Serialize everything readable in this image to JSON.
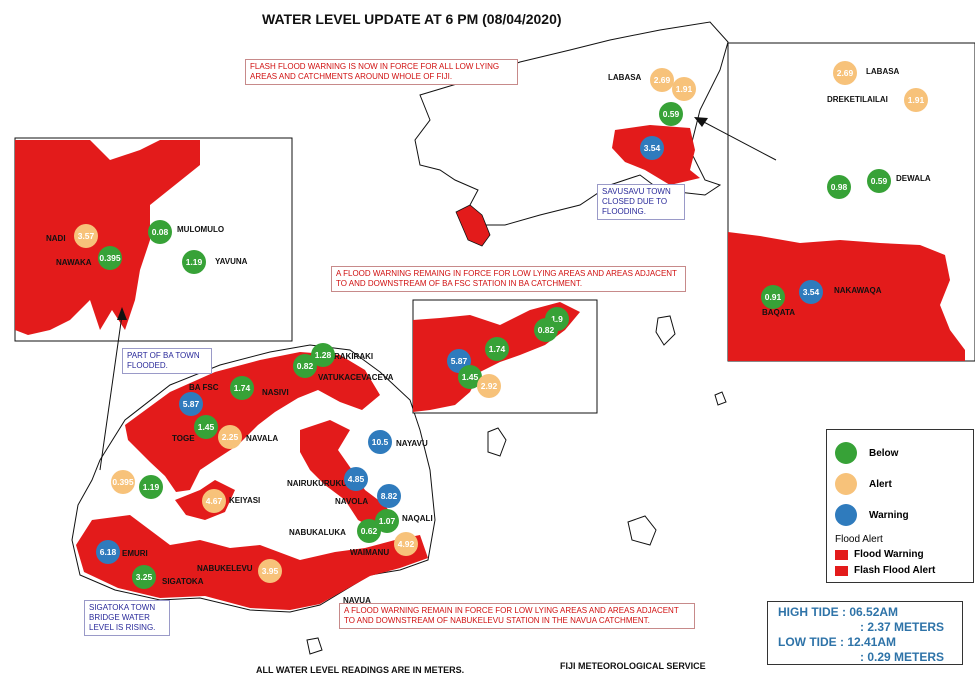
{
  "title": "WATER LEVEL UPDATE AT 6 PM (08/04/2020)",
  "notes": {
    "flash_flood": "FLASH FLOOD WARNING IS NOW IN FORCE FOR ALL LOW LYING AREAS AND CATCHMENTS AROUND WHOLE OF FIJI.",
    "ba_warning": "A FLOOD WARNING REMAING IN FORCE FOR LOW LYING AREAS AND AREAS ADJACENT TO AND DOWNSTREAM OF BA FSC STATION IN BA CATCHMENT.",
    "navua_warning": "A FLOOD WARNING REMAIN IN FORCE FOR LOW LYING AREAS AND AREAS ADJACENT TO AND DOWNSTREAM OF NABUKELEVU STATION IN THE NAVUA CATCHMENT.",
    "savusavu": "SAVUSAVU TOWN CLOSED DUE TO FLOODING.",
    "ba_town": "PART OF BA TOWN FLOODED.",
    "sigatoka": "SIGATOKA TOWN BRIDGE WATER LEVEL IS RISING."
  },
  "colors": {
    "below": "#37a237",
    "alert": "#f7c27a",
    "warning": "#2f7bbd",
    "flood": "#e31b1b"
  },
  "legend": {
    "below": "Below",
    "alert": "Alert",
    "warning": "Warning",
    "header": "Flood Alert",
    "flood_warning": "Flood Warning",
    "flash_flood_alert": "Flash Flood Alert"
  },
  "tide": {
    "high_label": "HIGH TIDE : 06.52AM",
    "high_level": ": 2.37 METERS",
    "low_label": "LOW TIDE   : 12.41AM",
    "low_level": ": 0.29 METERS"
  },
  "footer": {
    "units": "ALL WATER LEVEL READINGS ARE IN METERS.",
    "service": "FIJI METEOROLOGICAL SERVICE"
  },
  "stations": [
    {
      "value": "2.69",
      "status": "alert"
    },
    {
      "value": "1.91",
      "status": "alert"
    },
    {
      "value": "0.59",
      "status": "below"
    },
    {
      "value": "3.54",
      "status": "warning"
    },
    {
      "value": "3.57",
      "status": "alert"
    },
    {
      "value": "0.08",
      "status": "below"
    },
    {
      "value": "0.395",
      "status": "below"
    },
    {
      "value": "1.19",
      "status": "below"
    },
    {
      "value": "1.28",
      "status": "below"
    },
    {
      "value": "0.82",
      "status": "below"
    },
    {
      "value": "1.74",
      "status": "below"
    },
    {
      "value": "5.87",
      "status": "warning"
    },
    {
      "value": "1.45",
      "status": "below"
    },
    {
      "value": "2.25",
      "status": "alert"
    },
    {
      "value": "10.5",
      "status": "warning"
    },
    {
      "value": "4.85",
      "status": "warning"
    },
    {
      "value": "8.82",
      "status": "warning"
    },
    {
      "value": "1.07",
      "status": "below"
    },
    {
      "value": "0.62",
      "status": "below"
    },
    {
      "value": "4.92",
      "status": "alert"
    },
    {
      "value": "4.67",
      "status": "alert"
    },
    {
      "value": "0.395",
      "status": "alert"
    },
    {
      "value": "1.19",
      "status": "below"
    },
    {
      "value": "6.18",
      "status": "warning"
    },
    {
      "value": "3.25",
      "status": "below"
    },
    {
      "value": "3.95",
      "status": "alert"
    },
    {
      "value": "1.9",
      "status": "below"
    },
    {
      "value": "0.82",
      "status": "below"
    },
    {
      "value": "5.87",
      "status": "warning"
    },
    {
      "value": "1.74",
      "status": "below"
    },
    {
      "value": "1.45",
      "status": "below"
    },
    {
      "value": "2.92",
      "status": "alert"
    },
    {
      "value": "2.69",
      "status": "alert"
    },
    {
      "value": "1.91",
      "status": "alert"
    },
    {
      "value": "0.98",
      "status": "below"
    },
    {
      "value": "0.59",
      "status": "below"
    },
    {
      "value": "0.91",
      "status": "below"
    },
    {
      "value": "3.54",
      "status": "warning"
    }
  ],
  "place_names": [
    "LABASA",
    "NADI",
    "MULOMULO",
    "NAWAKA",
    "YAVUNA",
    "RAKIRAKI",
    "VATUKACEVACEVA",
    "BA FSC",
    "NASIVI",
    "TOGE",
    "NAVALA",
    "NAYAVU",
    "NAIRUKURUKU",
    "NAVOLA",
    "KEIYASI",
    "NAQALI",
    "NABUKALUKA",
    "WAIMANU",
    "EMURI",
    "NABUKELEVU",
    "SIGATOKA",
    "NAVUA",
    "LABASA",
    "DREKETILAILAI",
    "DEWALA",
    "NAKAWAQA",
    "BAQATA"
  ]
}
